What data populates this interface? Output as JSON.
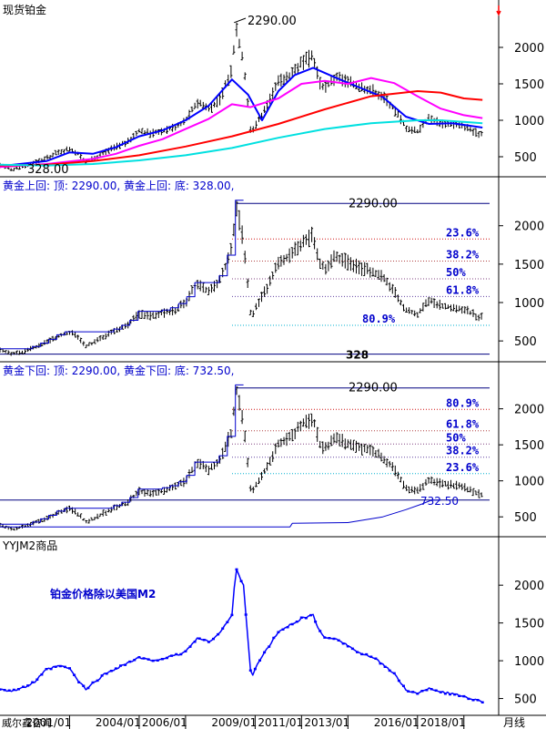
{
  "colors": {
    "price": "#000000",
    "ma_short": "#0000ff",
    "ma_mid": "#ff00ff",
    "ma_long": "#ff0000",
    "ma_cyan": "#00e0e0",
    "fib_blue": "#0000cc",
    "m2_line": "#0000ff",
    "frame": "#000000"
  },
  "chart_data": [
    {
      "type": "line",
      "title": "现货铂金",
      "ylim": [
        300,
        2400
      ],
      "yticks": [
        500,
        1000,
        1500,
        2000
      ],
      "annotations": [
        {
          "text": "2290.00",
          "x": 2008.17,
          "y": 2290
        },
        {
          "text": "328.00",
          "x": 1998.5,
          "y": 328
        }
      ],
      "series": [
        {
          "name": "",
          "values": [
            [
              1998,
              380
            ],
            [
              1998.5,
              328
            ],
            [
              1999,
              360
            ],
            [
              1999.5,
              420
            ],
            [
              2000,
              480
            ],
            [
              2000.5,
              560
            ],
            [
              2001,
              610
            ],
            [
              2001.3,
              560
            ],
            [
              2001.7,
              430
            ],
            [
              2002,
              470
            ],
            [
              2002.5,
              560
            ],
            [
              2003,
              640
            ],
            [
              2003.5,
              700
            ],
            [
              2004,
              860
            ],
            [
              2004.5,
              820
            ],
            [
              2005,
              860
            ],
            [
              2005.5,
              900
            ],
            [
              2006,
              1000
            ],
            [
              2006.5,
              1250
            ],
            [
              2007,
              1150
            ],
            [
              2007.5,
              1300
            ],
            [
              2008,
              1700
            ],
            [
              2008.17,
              2290
            ],
            [
              2008.5,
              1800
            ],
            [
              2008.83,
              790
            ],
            [
              2009,
              930
            ],
            [
              2009.5,
              1180
            ],
            [
              2010,
              1520
            ],
            [
              2010.5,
              1620
            ],
            [
              2011,
              1780
            ],
            [
              2011.5,
              1880
            ],
            [
              2011.8,
              1500
            ],
            [
              2012,
              1450
            ],
            [
              2012.5,
              1600
            ],
            [
              2013,
              1520
            ],
            [
              2013.5,
              1450
            ],
            [
              2014,
              1420
            ],
            [
              2014.5,
              1330
            ],
            [
              2015,
              1150
            ],
            [
              2015.5,
              900
            ],
            [
              2016,
              850
            ],
            [
              2016.5,
              1030
            ],
            [
              2017,
              960
            ],
            [
              2017.5,
              940
            ],
            [
              2018,
              920
            ],
            [
              2018.5,
              830
            ],
            [
              2018.8,
              810
            ]
          ]
        }
      ],
      "moving_averages": [
        {
          "color": "ma_short",
          "values": [
            [
              1998,
              370
            ],
            [
              2000,
              440
            ],
            [
              2001,
              560
            ],
            [
              2002,
              540
            ],
            [
              2003,
              630
            ],
            [
              2004,
              780
            ],
            [
              2005,
              860
            ],
            [
              2006,
              1000
            ],
            [
              2007,
              1200
            ],
            [
              2008,
              1560
            ],
            [
              2008.7,
              1350
            ],
            [
              2009.3,
              1000
            ],
            [
              2010,
              1400
            ],
            [
              2010.7,
              1620
            ],
            [
              2011.5,
              1720
            ],
            [
              2012.5,
              1580
            ],
            [
              2013.5,
              1450
            ],
            [
              2014.5,
              1320
            ],
            [
              2015.5,
              1050
            ],
            [
              2016.5,
              950
            ],
            [
              2017.5,
              960
            ],
            [
              2018.8,
              900
            ]
          ]
        },
        {
          "color": "ma_mid",
          "values": [
            [
              1998,
              360
            ],
            [
              2000,
              400
            ],
            [
              2002,
              470
            ],
            [
              2003,
              540
            ],
            [
              2004,
              650
            ],
            [
              2005,
              740
            ],
            [
              2006,
              880
            ],
            [
              2007,
              1020
            ],
            [
              2008,
              1220
            ],
            [
              2008.8,
              1180
            ],
            [
              2010,
              1300
            ],
            [
              2011,
              1500
            ],
            [
              2012,
              1540
            ],
            [
              2013,
              1500
            ],
            [
              2014,
              1580
            ],
            [
              2015,
              1510
            ],
            [
              2016,
              1330
            ],
            [
              2017,
              1160
            ],
            [
              2018,
              1070
            ],
            [
              2018.8,
              1030
            ]
          ]
        },
        {
          "color": "ma_long",
          "values": [
            [
              1998,
              380
            ],
            [
              2000,
              390
            ],
            [
              2002,
              440
            ],
            [
              2004,
              520
            ],
            [
              2006,
              640
            ],
            [
              2008,
              780
            ],
            [
              2010,
              950
            ],
            [
              2012,
              1150
            ],
            [
              2014,
              1330
            ],
            [
              2016,
              1400
            ],
            [
              2017,
              1380
            ],
            [
              2018,
              1300
            ],
            [
              2018.8,
              1280
            ]
          ]
        },
        {
          "color": "ma_cyan",
          "values": [
            [
              1998,
              390
            ],
            [
              2000,
              380
            ],
            [
              2002,
              400
            ],
            [
              2004,
              450
            ],
            [
              2006,
              520
            ],
            [
              2008,
              620
            ],
            [
              2010,
              760
            ],
            [
              2012,
              880
            ],
            [
              2014,
              960
            ],
            [
              2016,
              1000
            ],
            [
              2017,
              1000
            ],
            [
              2018.8,
              960
            ]
          ]
        }
      ]
    },
    {
      "type": "line",
      "title": "黄金上回:  顶: 2290.00, 黄金上回:  底: 328.00,",
      "ylim": [
        300,
        2400
      ],
      "yticks": [
        500,
        1000,
        1500,
        2000
      ],
      "high": 2290,
      "low": 328,
      "high_label": "2290.00",
      "low_label": "328",
      "levels": [
        {
          "label": "23.6%",
          "value": 1827
        },
        {
          "label": "38.2%",
          "value": 1540
        },
        {
          "label": "50%",
          "value": 1309
        },
        {
          "label": "61.8%",
          "value": 1078
        },
        {
          "label": "80.9%",
          "value": 703
        }
      ]
    },
    {
      "type": "line",
      "title": "黄金下回:  顶: 2290.00, 黄金下回:  底: 732.50,",
      "ylim": [
        300,
        2400
      ],
      "yticks": [
        500,
        1000,
        1500,
        2000
      ],
      "high": 2290,
      "low": 732.5,
      "high_label": "2290.00",
      "low_label": "732.50",
      "levels": [
        {
          "label": "80.9%",
          "value": 1992
        },
        {
          "label": "61.8%",
          "value": 1695
        },
        {
          "label": "50%",
          "value": 1511
        },
        {
          "label": "38.2%",
          "value": 1328
        },
        {
          "label": "23.6%",
          "value": 1100
        }
      ]
    },
    {
      "type": "line",
      "title": "YYJM2商品",
      "ylim": [
        350,
        2400
      ],
      "yticks": [
        500,
        1000,
        1500,
        2000
      ],
      "annotation": "铂金价格除以美国M2",
      "series": [
        {
          "name": "",
          "values": [
            [
              1998,
              630
            ],
            [
              1998.5,
              600
            ],
            [
              1999,
              640
            ],
            [
              1999.5,
              720
            ],
            [
              2000,
              880
            ],
            [
              2000.5,
              930
            ],
            [
              2001,
              900
            ],
            [
              2001.3,
              760
            ],
            [
              2001.7,
              620
            ],
            [
              2002,
              700
            ],
            [
              2002.5,
              820
            ],
            [
              2003,
              900
            ],
            [
              2004,
              1040
            ],
            [
              2004.5,
              1000
            ],
            [
              2005,
              1030
            ],
            [
              2005.5,
              1060
            ],
            [
              2006,
              1120
            ],
            [
              2006.5,
              1300
            ],
            [
              2007,
              1250
            ],
            [
              2007.5,
              1380
            ],
            [
              2008,
              1600
            ],
            [
              2008.17,
              2220
            ],
            [
              2008.5,
              2000
            ],
            [
              2008.83,
              760
            ],
            [
              2009,
              900
            ],
            [
              2009.5,
              1150
            ],
            [
              2010,
              1380
            ],
            [
              2010.5,
              1470
            ],
            [
              2011,
              1560
            ],
            [
              2011.5,
              1600
            ],
            [
              2011.8,
              1380
            ],
            [
              2012,
              1300
            ],
            [
              2012.5,
              1300
            ],
            [
              2013,
              1200
            ],
            [
              2013.5,
              1100
            ],
            [
              2014,
              1050
            ],
            [
              2014.5,
              960
            ],
            [
              2015,
              820
            ],
            [
              2015.5,
              620
            ],
            [
              2016,
              560
            ],
            [
              2016.5,
              640
            ],
            [
              2017,
              590
            ],
            [
              2017.5,
              560
            ],
            [
              2018,
              530
            ],
            [
              2018.5,
              480
            ],
            [
              2018.8,
              460
            ]
          ]
        }
      ]
    }
  ],
  "x_axis": {
    "range": [
      1998,
      2019.5
    ],
    "ticks": [
      {
        "label": "2001/01",
        "x": 2001
      },
      {
        "label": "2004/01",
        "x": 2004
      },
      {
        "label": "2006/01",
        "x": 2006
      },
      {
        "label": "2009/01",
        "x": 2009
      },
      {
        "label": "2011/01",
        "x": 2011
      },
      {
        "label": "2013/01",
        "x": 2013
      },
      {
        "label": "2016/01",
        "x": 2016
      },
      {
        "label": "2018/01",
        "x": 2018
      }
    ],
    "left_label": "威尔鑫咨询",
    "right_label": "月线"
  }
}
